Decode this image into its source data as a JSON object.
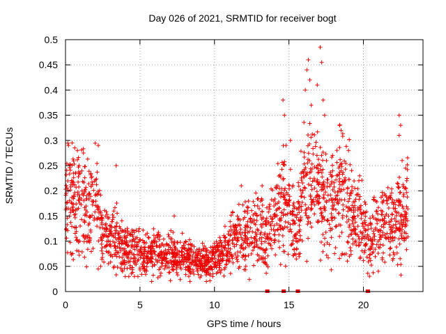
{
  "chart_data": {
    "type": "scatter",
    "title": "Day 026 of 2021, SRMTID for receiver bogt",
    "xlabel": "GPS time / hours",
    "ylabel": "SRMTID / TECUs",
    "xlim": [
      0,
      24
    ],
    "ylim": [
      0,
      0.5
    ],
    "grid": true,
    "xticks": [
      0,
      5,
      10,
      15,
      20
    ],
    "xtick_labels": [
      "0",
      "5",
      "10",
      "15",
      "20"
    ],
    "yticks": [
      0,
      0.05,
      0.1,
      0.15,
      0.2,
      0.25,
      0.3,
      0.35,
      0.4,
      0.45,
      0.5
    ],
    "ytick_labels": [
      "0",
      "0.05",
      "0.1",
      "0.15",
      "0.2",
      "0.25",
      "0.3",
      "0.35",
      "0.4",
      "0.45",
      "0.5"
    ],
    "marker_color": "#ee0000",
    "series": [
      {
        "name": "SRMTID",
        "marker": "plus",
        "trend": [
          [
            0.0,
            0.18
          ],
          [
            0.5,
            0.19
          ],
          [
            1.0,
            0.19
          ],
          [
            1.5,
            0.16
          ],
          [
            2.0,
            0.18
          ],
          [
            2.5,
            0.11
          ],
          [
            3.0,
            0.1
          ],
          [
            3.5,
            0.11
          ],
          [
            4.0,
            0.09
          ],
          [
            4.5,
            0.08
          ],
          [
            5.0,
            0.075
          ],
          [
            5.5,
            0.07
          ],
          [
            6.0,
            0.08
          ],
          [
            6.5,
            0.08
          ],
          [
            7.0,
            0.07
          ],
          [
            7.5,
            0.07
          ],
          [
            8.0,
            0.07
          ],
          [
            8.5,
            0.06
          ],
          [
            9.0,
            0.055
          ],
          [
            9.5,
            0.06
          ],
          [
            10.0,
            0.065
          ],
          [
            10.5,
            0.075
          ],
          [
            11.0,
            0.09
          ],
          [
            11.5,
            0.1
          ],
          [
            12.0,
            0.11
          ],
          [
            12.5,
            0.12
          ],
          [
            13.0,
            0.12
          ],
          [
            13.5,
            0.11
          ],
          [
            14.0,
            0.15
          ],
          [
            14.5,
            0.17
          ],
          [
            15.0,
            0.16
          ],
          [
            15.5,
            0.12
          ],
          [
            16.0,
            0.2
          ],
          [
            16.5,
            0.22
          ],
          [
            17.0,
            0.22
          ],
          [
            17.5,
            0.16
          ],
          [
            18.0,
            0.18
          ],
          [
            18.5,
            0.2
          ],
          [
            19.0,
            0.18
          ],
          [
            19.5,
            0.15
          ],
          [
            20.0,
            0.12
          ],
          [
            20.5,
            0.1
          ],
          [
            21.0,
            0.12
          ],
          [
            21.5,
            0.14
          ],
          [
            22.0,
            0.14
          ],
          [
            22.5,
            0.15
          ],
          [
            23.0,
            0.16
          ]
        ],
        "outliers": [
          [
            0.2,
            0.29
          ],
          [
            0.45,
            0.295
          ],
          [
            0.8,
            0.28
          ],
          [
            2.2,
            0.29
          ],
          [
            3.4,
            0.25
          ],
          [
            14.6,
            0.38
          ],
          [
            14.7,
            0.35
          ],
          [
            14.8,
            0.29
          ],
          [
            15.1,
            0.3
          ],
          [
            16.1,
            0.4
          ],
          [
            16.2,
            0.44
          ],
          [
            16.3,
            0.46
          ],
          [
            16.4,
            0.42
          ],
          [
            16.5,
            0.37
          ],
          [
            16.9,
            0.41
          ],
          [
            17.1,
            0.485
          ],
          [
            17.2,
            0.455
          ],
          [
            17.3,
            0.38
          ],
          [
            17.4,
            0.35
          ],
          [
            18.4,
            0.33
          ],
          [
            18.5,
            0.32
          ],
          [
            19.0,
            0.28
          ],
          [
            22.4,
            0.35
          ],
          [
            22.5,
            0.33
          ],
          [
            22.4,
            0.31
          ],
          [
            22.6,
            0.26
          ],
          [
            7.3,
            0.15
          ],
          [
            11.8,
            0.21
          ],
          [
            13.2,
            0.21
          ]
        ]
      },
      {
        "name": "zero markers",
        "marker": "square",
        "points": [
          [
            13.55,
            0
          ],
          [
            14.65,
            0
          ],
          [
            15.6,
            0
          ],
          [
            20.3,
            0
          ]
        ]
      }
    ]
  }
}
